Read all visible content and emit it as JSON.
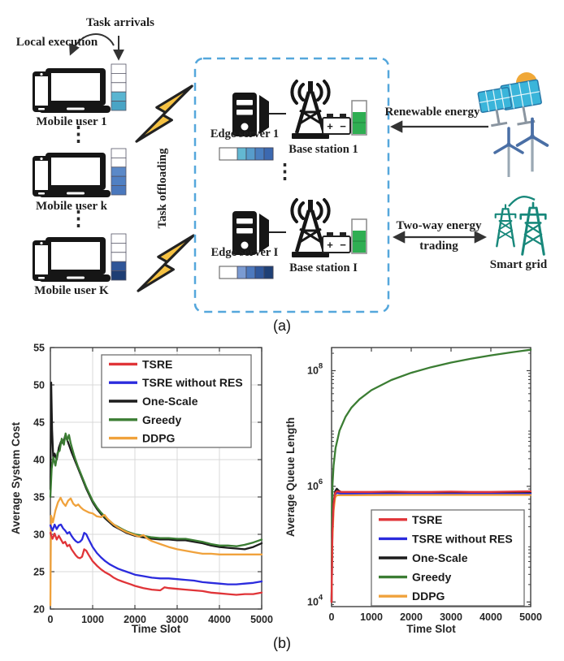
{
  "diagram": {
    "task_arrivals": "Task arrivals",
    "local_execution": "Local execution",
    "mobile_user_1": "Mobile user 1",
    "mobile_user_k": "Mobile user k",
    "mobile_user_K": "Mobile user K",
    "task_offloading": "Task offloading",
    "edge_server_1": "Edge server 1",
    "edge_server_I": "Edge server I",
    "base_station_1": "Base station 1",
    "base_station_I": "Base station I",
    "renewable_energy": "Renewable energy",
    "two_way_energy_line1": "Two-way energy",
    "two_way_energy_line2": "trading",
    "smart_grid": "Smart grid",
    "battery_plus": "+",
    "battery_minus": "−",
    "ellipsis": "⋮",
    "label_a": "(a)",
    "label_b": "(b)",
    "colors": {
      "dashed_box": "#55a7dc",
      "lightning": "#f6c243",
      "icon_black": "#161616",
      "smart_grid": "#18887b",
      "solar_panel": "#3ab5da",
      "sun": "#f0a838",
      "wind": "#4a6fa5",
      "energy_green": "#2fae52",
      "arrow": "#333333"
    },
    "queues": {
      "user1": [
        "#ffffff",
        "#ffffff",
        "#ffffff",
        "#5ab5d1",
        "#49a4c5"
      ],
      "userk": [
        "#ffffff",
        "#ffffff",
        "#5b89c8",
        "#5080c3",
        "#4a78bd"
      ],
      "userK": [
        "#ffffff",
        "#ffffff",
        "#ffffff",
        "#2f5598",
        "#1e3e74"
      ],
      "edge1": [
        "#63b8d2",
        "#579ccb",
        "#4a7fc0",
        "#3c69b0"
      ],
      "edgeI": [
        "#7b9bd2",
        "#4d79be",
        "#30589c",
        "#1f4076"
      ]
    }
  },
  "chart_data": [
    {
      "type": "line",
      "title": "",
      "xlabel": "Time Slot",
      "ylabel": "Average System Cost",
      "xlim": [
        0,
        5000
      ],
      "ylim": [
        20,
        55
      ],
      "xticks": [
        0,
        1000,
        2000,
        3000,
        4000,
        5000
      ],
      "yticks": [
        20,
        25,
        30,
        35,
        40,
        45,
        50,
        55
      ],
      "grid": true,
      "legend_position": "inside upper center",
      "draw_order": [
        2,
        3,
        4,
        1,
        0
      ],
      "series": [
        {
          "name": "TSRE",
          "color": "#e03438",
          "x": [
            0,
            50,
            100,
            150,
            200,
            250,
            300,
            350,
            400,
            450,
            500,
            550,
            600,
            650,
            700,
            750,
            800,
            850,
            900,
            1000,
            1100,
            1200,
            1300,
            1400,
            1500,
            1600,
            1700,
            1800,
            1900,
            2000,
            2200,
            2400,
            2600,
            2700,
            2800,
            3000,
            3200,
            3400,
            3600,
            3800,
            4000,
            4200,
            4400,
            4600,
            4800,
            5000
          ],
          "y": [
            30.2,
            29.4,
            30.1,
            29.3,
            29.8,
            29.3,
            28.8,
            29.0,
            28.4,
            28.6,
            28.0,
            27.6,
            27.2,
            26.9,
            26.8,
            27.0,
            28.0,
            27.8,
            27.3,
            26.4,
            25.8,
            25.3,
            24.9,
            24.6,
            24.2,
            23.9,
            23.7,
            23.5,
            23.3,
            23.1,
            22.8,
            22.6,
            22.5,
            22.9,
            22.8,
            22.7,
            22.6,
            22.5,
            22.4,
            22.2,
            22.1,
            22.0,
            21.9,
            22.0,
            22.0,
            22.2
          ]
        },
        {
          "name": "TSRE without RES",
          "color": "#2b2bdd",
          "x": [
            0,
            50,
            100,
            150,
            200,
            250,
            300,
            350,
            400,
            450,
            500,
            550,
            600,
            650,
            700,
            750,
            800,
            850,
            900,
            1000,
            1100,
            1200,
            1300,
            1400,
            1500,
            1600,
            1700,
            1800,
            1900,
            2000,
            2200,
            2400,
            2600,
            2700,
            2800,
            3000,
            3200,
            3400,
            3600,
            3800,
            4000,
            4200,
            4400,
            4600,
            4800,
            5000
          ],
          "y": [
            31.2,
            30.5,
            31.3,
            30.7,
            31.2,
            31.3,
            30.8,
            30.5,
            30.1,
            30.3,
            29.8,
            29.4,
            29.1,
            28.9,
            29.0,
            29.3,
            30.2,
            30.0,
            29.4,
            28.3,
            27.5,
            26.9,
            26.4,
            26.0,
            25.7,
            25.4,
            25.2,
            25.0,
            24.8,
            24.6,
            24.4,
            24.2,
            24.1,
            24.1,
            24.1,
            24.0,
            23.9,
            23.8,
            23.6,
            23.5,
            23.4,
            23.3,
            23.3,
            23.4,
            23.5,
            23.7
          ]
        },
        {
          "name": "One-Scale",
          "color": "#1c1c1c",
          "x": [
            0,
            20,
            40,
            70,
            100,
            150,
            200,
            250,
            300,
            350,
            400,
            450,
            500,
            550,
            600,
            650,
            700,
            750,
            800,
            850,
            900,
            1000,
            1100,
            1200,
            1300,
            1400,
            1500,
            1600,
            1700,
            1800,
            1900,
            2000,
            2200,
            2400,
            2600,
            2800,
            3000,
            3200,
            3400,
            3600,
            3800,
            4000,
            4200,
            4400,
            4600,
            4800,
            5000
          ],
          "y": [
            36.0,
            50.3,
            44.0,
            40.0,
            40.8,
            40.0,
            41.6,
            42.4,
            42.2,
            43.2,
            42.6,
            41.8,
            41.0,
            40.3,
            39.6,
            38.9,
            38.2,
            37.5,
            36.8,
            36.1,
            35.5,
            34.3,
            33.4,
            32.7,
            32.1,
            31.6,
            31.1,
            30.8,
            30.5,
            30.2,
            30.0,
            29.8,
            29.6,
            29.4,
            29.3,
            29.3,
            29.2,
            29.2,
            29.0,
            28.8,
            28.5,
            28.3,
            28.2,
            28.1,
            28.0,
            28.3,
            28.8
          ]
        },
        {
          "name": "Greedy",
          "color": "#3b7d33",
          "x": [
            0,
            30,
            70,
            120,
            170,
            220,
            270,
            320,
            360,
            400,
            440,
            480,
            520,
            560,
            600,
            650,
            700,
            750,
            800,
            850,
            900,
            1000,
            1100,
            1200,
            1300,
            1400,
            1500,
            1600,
            1700,
            1800,
            1900,
            2000,
            2200,
            2400,
            2600,
            2800,
            3000,
            3200,
            3400,
            3600,
            3800,
            4000,
            4200,
            4400,
            4600,
            4800,
            5000
          ],
          "y": [
            35.0,
            38.8,
            40.3,
            39.2,
            40.9,
            41.2,
            42.8,
            42.0,
            43.5,
            42.6,
            43.3,
            42.2,
            41.4,
            40.6,
            39.9,
            39.1,
            38.4,
            37.7,
            37.0,
            36.3,
            35.7,
            34.5,
            33.6,
            32.9,
            32.3,
            31.8,
            31.3,
            31.0,
            30.7,
            30.4,
            30.2,
            30.0,
            29.8,
            29.6,
            29.5,
            29.5,
            29.4,
            29.4,
            29.2,
            29.0,
            28.7,
            28.5,
            28.5,
            28.4,
            28.6,
            28.9,
            29.3
          ]
        },
        {
          "name": "DDPG",
          "color": "#f0a23c",
          "x": [
            0,
            15,
            60,
            120,
            180,
            240,
            300,
            360,
            420,
            480,
            540,
            600,
            660,
            720,
            780,
            850,
            920,
            1000,
            1100,
            1200,
            1280,
            1350,
            1420,
            1500,
            1600,
            1700,
            1800,
            1900,
            2000,
            2100,
            2200,
            2300,
            2400,
            2600,
            2800,
            3000,
            3200,
            3400,
            3600,
            3800,
            4000,
            4300,
            4600,
            5000
          ],
          "y": [
            20.5,
            32.5,
            31.6,
            33.2,
            34.3,
            34.9,
            34.2,
            33.8,
            34.5,
            34.8,
            34.1,
            33.8,
            34.0,
            33.6,
            33.3,
            33.1,
            32.9,
            32.8,
            32.4,
            32.3,
            32.6,
            32.1,
            31.7,
            31.3,
            30.9,
            30.6,
            30.3,
            30.1,
            29.9,
            29.7,
            29.9,
            29.4,
            29.1,
            28.7,
            28.3,
            28.0,
            27.8,
            27.6,
            27.4,
            27.4,
            27.3,
            27.3,
            27.3,
            27.3
          ]
        }
      ]
    },
    {
      "type": "line",
      "title": "",
      "xlabel": "Time Slot",
      "ylabel": "Average Queue Length",
      "xlim": [
        0,
        5000
      ],
      "yscale": "log",
      "ylim_log10": [
        3.92,
        8.4
      ],
      "xticks": [
        0,
        1000,
        2000,
        3000,
        4000,
        5000
      ],
      "ytick_base": "10",
      "ytick_exponents": [
        4,
        6,
        8
      ],
      "grid": false,
      "legend_position": "inside lower right",
      "draw_order": [
        3,
        2,
        1,
        4,
        0
      ],
      "series": [
        {
          "name": "TSRE",
          "color": "#e03438",
          "x": [
            0,
            20,
            50,
            90,
            130,
            180,
            250,
            350,
            500,
            1000,
            1500,
            2000,
            2500,
            3000,
            3500,
            4000,
            4500,
            5000
          ],
          "y": [
            10000.0,
            160000.0,
            490000.0,
            760000.0,
            820000.0,
            810000.0,
            800000.0,
            800000.0,
            800000.0,
            800000.0,
            810000.0,
            800000.0,
            800000.0,
            810000.0,
            800000.0,
            800000.0,
            810000.0,
            820000.0
          ]
        },
        {
          "name": "TSRE without RES",
          "color": "#2b2bdd",
          "x": [
            0,
            20,
            50,
            90,
            130,
            180,
            250,
            350,
            500,
            1000,
            2000,
            3000,
            4000,
            5000
          ],
          "y": [
            10000.0,
            150000.0,
            460000.0,
            720000.0,
            780000.0,
            760000.0,
            740000.0,
            740000.0,
            740000.0,
            740000.0,
            740000.0,
            740000.0,
            740000.0,
            740000.0
          ]
        },
        {
          "name": "One-Scale",
          "color": "#1c1c1c",
          "x": [
            0,
            20,
            50,
            90,
            130,
            180,
            250,
            350,
            500,
            750,
            1000,
            1500,
            2000,
            2500,
            3000,
            3500,
            4000,
            4500,
            5000
          ],
          "y": [
            10000.0,
            180000.0,
            520000.0,
            820000.0,
            910000.0,
            840000.0,
            790000.0,
            770000.0,
            770000.0,
            770000.0,
            770000.0,
            770000.0,
            770000.0,
            770000.0,
            770000.0,
            770000.0,
            770000.0,
            770000.0,
            770000.0
          ]
        },
        {
          "name": "Greedy",
          "color": "#3b7d33",
          "x": [
            0,
            10,
            25,
            50,
            100,
            200,
            350,
            500,
            700,
            1000,
            1500,
            2000,
            2500,
            3000,
            3500,
            4000,
            4500,
            5000
          ],
          "y": [
            10000.0,
            450000.0,
            1100000.0,
            2300000.0,
            4600000.0,
            9200000.0,
            16000000.0,
            23000000.0,
            32000000.0,
            46000000.0,
            69000000.0,
            92000000.0,
            115000000.0,
            138000000.0,
            161000000.0,
            184000000.0,
            207000000.0,
            230000000.0
          ]
        },
        {
          "name": "DDPG",
          "color": "#f0a23c",
          "x": [
            0,
            20,
            50,
            90,
            130,
            180,
            250,
            350,
            500,
            1000,
            2000,
            3000,
            4000,
            5000
          ],
          "y": [
            10000.0,
            120000.0,
            380000.0,
            640000.0,
            700000.0,
            700000.0,
            700000.0,
            700000.0,
            700000.0,
            705000.0,
            710000.0,
            710000.0,
            710000.0,
            710000.0
          ]
        }
      ]
    }
  ]
}
